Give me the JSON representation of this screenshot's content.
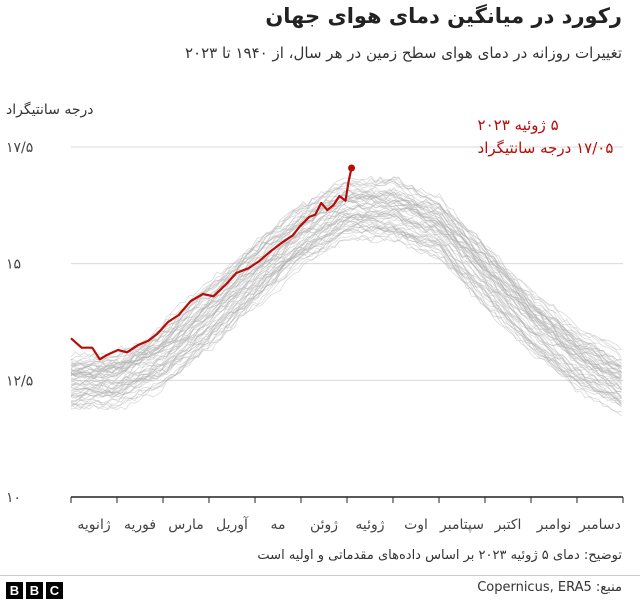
{
  "title": "رکورد در میانگین دمای هوای جهان",
  "subtitle": "تغییرات روزانه در دمای هوای سطح زمین در هر سال، از ۱۹۴۰ تا ۲۰۲۳",
  "unit_label": "درجه سانتیگراد",
  "note": "توضیح: دمای ۵ ژوئیه ۲۰۲۳ بر اساس داده‌های مقدماتی و اولیه است",
  "source": "منبع: Copernicus, ERA5",
  "logo": [
    "B",
    "B",
    "C"
  ],
  "colors": {
    "highlight": "#b80c09",
    "background_lines": "#b0b0b0",
    "grid": "#d9d9d9"
  },
  "chart_data": {
    "type": "line",
    "ylim": [
      10,
      17.5
    ],
    "y_ticks": [
      {
        "value": 17.5,
        "label": "۱۷/۵"
      },
      {
        "value": 15,
        "label": "۱۵"
      },
      {
        "value": 12.5,
        "label": "۱۲/۵"
      },
      {
        "value": 10,
        "label": "۱۰"
      }
    ],
    "months": [
      "ژانویه",
      "فوریه",
      "مارس",
      "آوریل",
      "مه",
      "ژوئن",
      "ژوئیه",
      "اوت",
      "سپتامبر",
      "اکتبر",
      "نوامبر",
      "دسامبر"
    ],
    "grid": true,
    "annotation": {
      "date_label": "۵ ژوئیه ۲۰۲۳",
      "value_label": "۱۷/۰۵ درجه سانتیگراد",
      "day": 186,
      "value": 17.05
    },
    "background_series": {
      "description": "1940–2022",
      "envelope": [
        {
          "day": 1,
          "low": 11.9,
          "high": 13.0
        },
        {
          "day": 32,
          "low": 12.0,
          "high": 13.1
        },
        {
          "day": 60,
          "low": 12.4,
          "high": 13.6
        },
        {
          "day": 91,
          "low": 13.2,
          "high": 14.5
        },
        {
          "day": 121,
          "low": 14.1,
          "high": 15.4
        },
        {
          "day": 152,
          "low": 15.0,
          "high": 16.2
        },
        {
          "day": 182,
          "low": 15.6,
          "high": 16.8
        },
        {
          "day": 213,
          "low": 15.6,
          "high": 16.8
        },
        {
          "day": 244,
          "low": 15.2,
          "high": 16.4
        },
        {
          "day": 274,
          "low": 14.2,
          "high": 15.4
        },
        {
          "day": 305,
          "low": 13.2,
          "high": 14.3
        },
        {
          "day": 335,
          "low": 12.4,
          "high": 13.5
        },
        {
          "day": 365,
          "low": 11.9,
          "high": 13.0
        }
      ]
    },
    "series": [
      {
        "name": "2023",
        "points": [
          {
            "day": 1,
            "value": 13.4
          },
          {
            "day": 8,
            "value": 13.2
          },
          {
            "day": 15,
            "value": 13.2
          },
          {
            "day": 20,
            "value": 12.95
          },
          {
            "day": 25,
            "value": 13.05
          },
          {
            "day": 32,
            "value": 13.15
          },
          {
            "day": 38,
            "value": 13.1
          },
          {
            "day": 45,
            "value": 13.25
          },
          {
            "day": 52,
            "value": 13.35
          },
          {
            "day": 58,
            "value": 13.5
          },
          {
            "day": 65,
            "value": 13.75
          },
          {
            "day": 72,
            "value": 13.9
          },
          {
            "day": 80,
            "value": 14.2
          },
          {
            "day": 88,
            "value": 14.35
          },
          {
            "day": 95,
            "value": 14.3
          },
          {
            "day": 103,
            "value": 14.55
          },
          {
            "day": 110,
            "value": 14.8
          },
          {
            "day": 118,
            "value": 14.9
          },
          {
            "day": 125,
            "value": 15.05
          },
          {
            "day": 132,
            "value": 15.25
          },
          {
            "day": 140,
            "value": 15.45
          },
          {
            "day": 147,
            "value": 15.6
          },
          {
            "day": 152,
            "value": 15.8
          },
          {
            "day": 158,
            "value": 16.0
          },
          {
            "day": 162,
            "value": 16.05
          },
          {
            "day": 166,
            "value": 16.3
          },
          {
            "day": 170,
            "value": 16.15
          },
          {
            "day": 174,
            "value": 16.25
          },
          {
            "day": 178,
            "value": 16.45
          },
          {
            "day": 182,
            "value": 16.35
          },
          {
            "day": 184,
            "value": 16.75
          },
          {
            "day": 186,
            "value": 17.05
          }
        ]
      }
    ]
  }
}
